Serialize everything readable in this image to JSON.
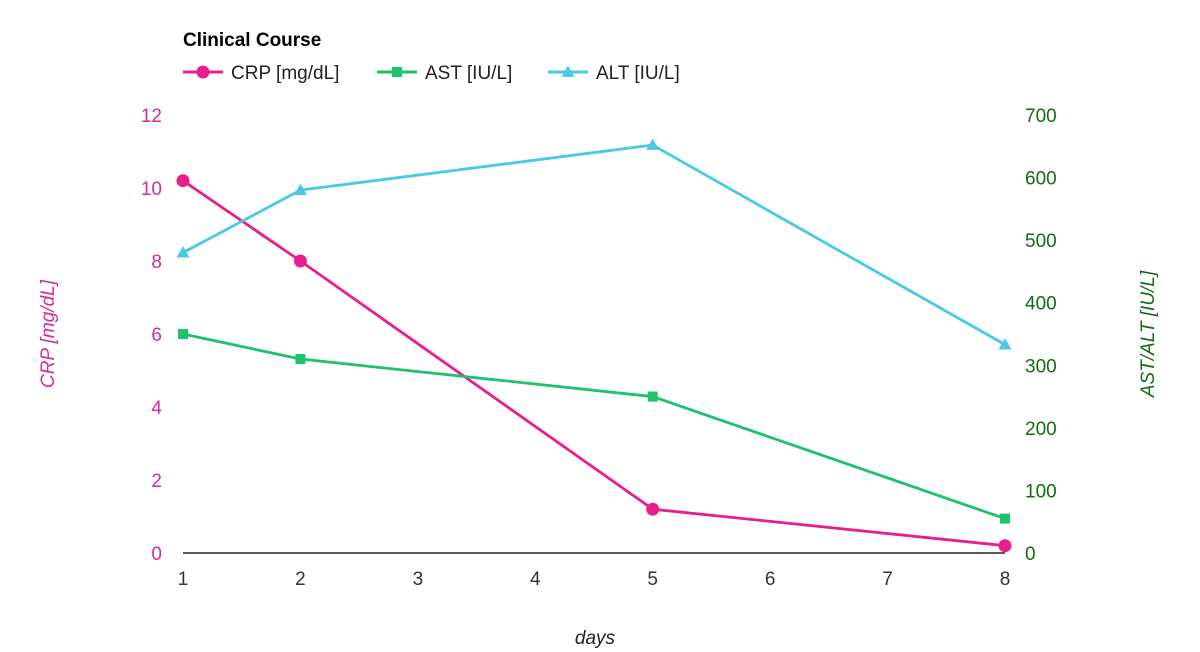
{
  "chart_data": {
    "type": "line",
    "title": "Clinical Course",
    "xlabel": "days",
    "ylabel_left": "CRP [mg/dL]",
    "ylabel_right": "AST/ALT [IU/L]",
    "x_ticks": [
      "1",
      "2",
      "3",
      "4",
      "5",
      "6",
      "7",
      "8"
    ],
    "x_range": [
      1,
      8
    ],
    "ylim_left": [
      0,
      12
    ],
    "ylim_right": [
      0,
      700
    ],
    "yticks_left": [
      "0",
      "2",
      "4",
      "6",
      "8",
      "10",
      "12"
    ],
    "yticks_right": [
      "0",
      "100",
      "200",
      "300",
      "400",
      "500",
      "600",
      "700"
    ],
    "grid": false,
    "legend_position": "top-left",
    "series": [
      {
        "name": "CRP [mg/dL]",
        "axis": "left",
        "color": "#e91e8c",
        "marker": "circle",
        "x": [
          1,
          2,
          5,
          8
        ],
        "y": [
          10.2,
          8.0,
          1.2,
          0.2
        ]
      },
      {
        "name": "AST [IU/L]",
        "axis": "right",
        "color": "#1ec26b",
        "marker": "square",
        "x": [
          1,
          2,
          5,
          8
        ],
        "y": [
          350,
          310,
          250,
          55
        ]
      },
      {
        "name": "ALT [IU/L]",
        "axis": "right",
        "color": "#4ac9e6",
        "marker": "triangle",
        "x": [
          1,
          2,
          5,
          8
        ],
        "y": [
          480,
          580,
          652,
          333
        ]
      }
    ]
  }
}
